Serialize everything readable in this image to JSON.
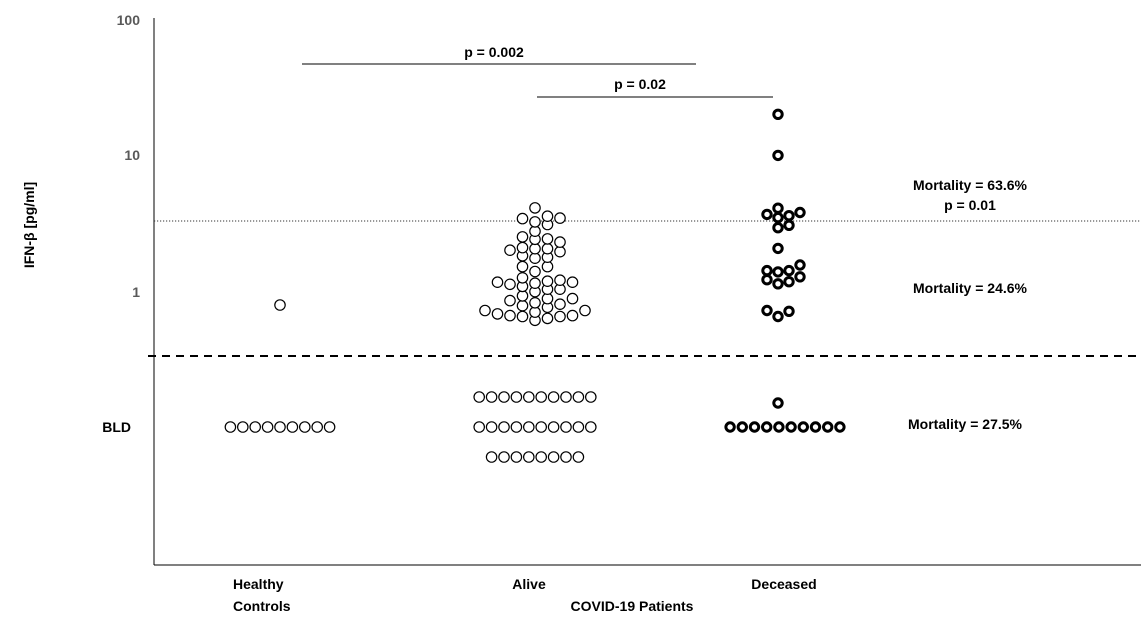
{
  "chart_data": {
    "type": "scatter",
    "title": "",
    "ylabel": "IFN-β [pg/ml]",
    "yscale": "log",
    "ylim": [
      0.01,
      100
    ],
    "grid": false,
    "legend": "none",
    "y_ticks": [
      {
        "value": 100,
        "label": "100"
      },
      {
        "value": 10,
        "label": "10"
      },
      {
        "value": 1,
        "label": "1"
      }
    ],
    "bld_label": "BLD",
    "x_group_label": "COVID-19 Patients",
    "categories": [
      {
        "name_lines": [
          "Healthy",
          "Controls"
        ]
      },
      {
        "name_lines": [
          "Alive"
        ]
      },
      {
        "name_lines": [
          "Deceased"
        ]
      }
    ],
    "series": [
      {
        "category": "Healthy Controls",
        "marker": "thin-circle",
        "detected_values": [
          0.79
        ],
        "bld_count": 9
      },
      {
        "category": "Alive",
        "marker": "thin-circle",
        "detected_values": [
          0.61,
          0.63,
          0.65,
          0.65,
          0.66,
          0.66,
          0.68,
          0.7,
          0.72,
          0.72,
          0.76,
          0.78,
          0.8,
          0.82,
          0.85,
          0.88,
          0.88,
          0.92,
          0.99,
          1.03,
          1.03,
          1.08,
          1.12,
          1.14,
          1.16,
          1.16,
          1.18,
          1.2,
          1.25,
          1.39,
          1.51,
          1.51,
          1.74,
          1.77,
          1.81,
          1.94,
          1.99,
          2.04,
          2.04,
          2.08,
          2.28,
          2.39,
          2.41,
          2.49,
          2.74,
          3.07,
          3.21,
          3.39,
          3.42,
          3.53,
          4.06
        ],
        "bld_count": 28
      },
      {
        "category": "Deceased",
        "marker": "bold-circle",
        "detected_values": [
          0.65,
          0.71,
          0.72,
          1.13,
          1.17,
          1.21,
          1.27,
          1.38,
          1.41,
          1.41,
          1.55,
          2.05,
          2.91,
          3.03,
          3.45,
          3.56,
          3.64,
          3.76,
          4.04,
          9.85,
          19.7
        ],
        "bld_count": 11
      }
    ],
    "reference_lines": [
      {
        "type": "dotted",
        "value": 3.25
      },
      {
        "type": "dashed",
        "meaning": "BLD cutoff"
      }
    ],
    "significance": [
      {
        "text": "p = 0.002",
        "from": "Healthy Controls",
        "to": "Deceased"
      },
      {
        "text": "p = 0.02",
        "from": "Alive",
        "to": "Deceased"
      }
    ],
    "annotations": [
      {
        "lines": [
          "Mortality = 63.6%",
          "p = 0.01"
        ]
      },
      {
        "lines": [
          "Mortality = 24.6%"
        ]
      },
      {
        "lines": [
          "Mortality = 27.5%"
        ]
      }
    ]
  }
}
